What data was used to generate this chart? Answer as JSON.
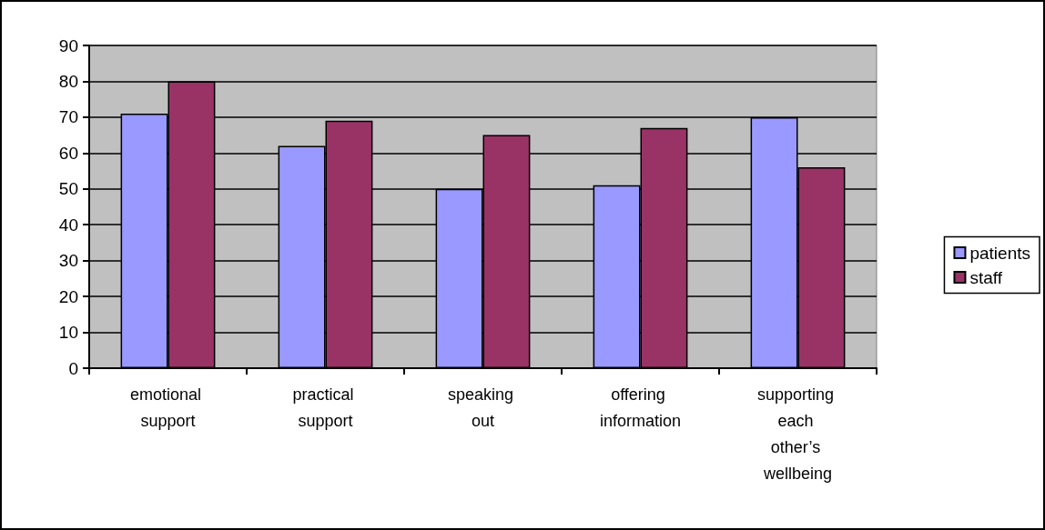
{
  "chart_data": {
    "type": "bar",
    "categories": [
      "emotional support",
      "practical support",
      "speaking out",
      "offering information",
      "supporting each other’s wellbeing"
    ],
    "series": [
      {
        "name": "patients",
        "color": "#9999ff",
        "values": [
          71,
          62,
          50,
          51,
          70
        ]
      },
      {
        "name": "staff",
        "color": "#993366",
        "values": [
          80,
          69,
          65,
          67,
          56
        ]
      }
    ],
    "ylim": [
      0,
      90
    ],
    "yticks": [
      0,
      10,
      20,
      30,
      40,
      50,
      60,
      70,
      80,
      90
    ],
    "grid": "y",
    "legend": "right"
  }
}
